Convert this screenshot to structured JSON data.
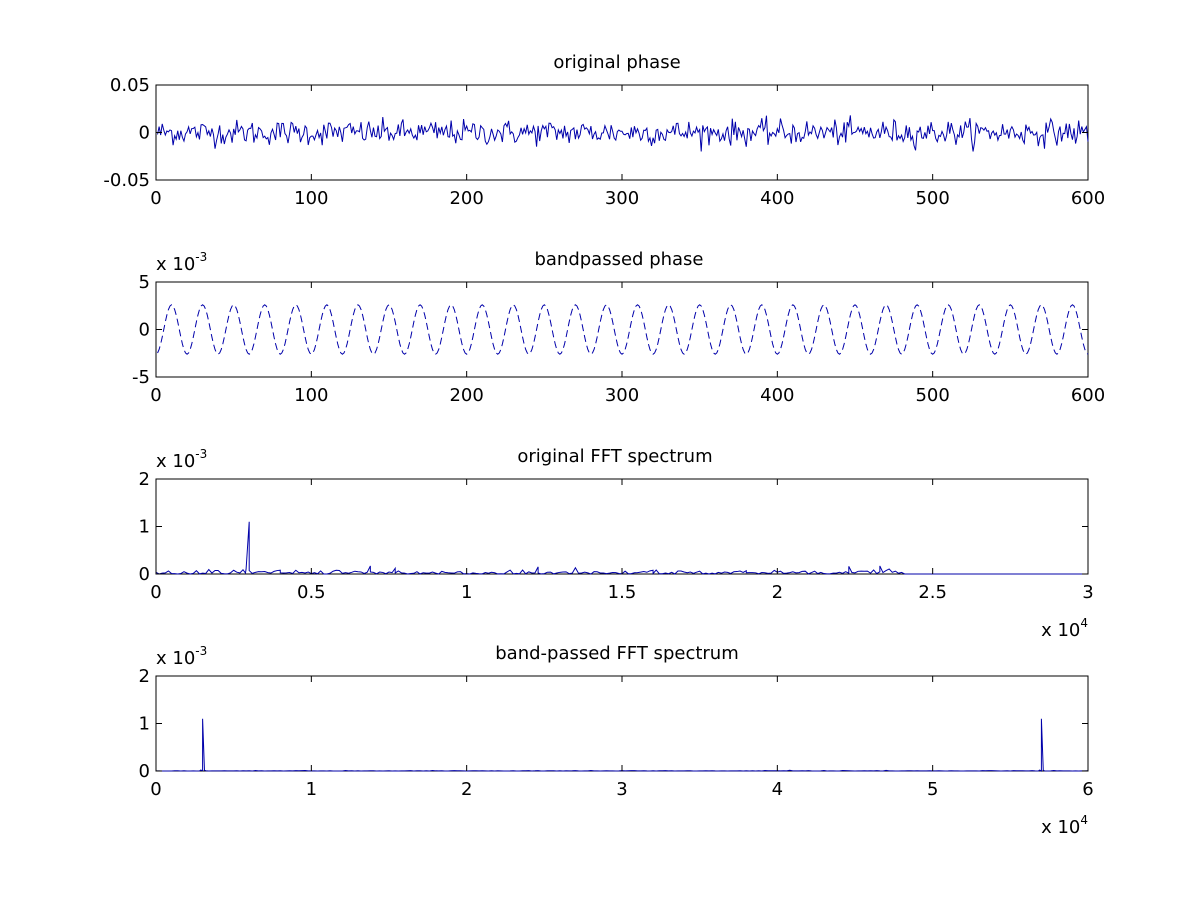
{
  "figure": {
    "background": "#ffffff",
    "line_color": "#0000aa",
    "axis_color": "#000000"
  },
  "chart_data": [
    {
      "type": "line",
      "title": "original phase",
      "xlabel": "",
      "ylabel": "",
      "xlim": [
        0,
        600
      ],
      "ylim": [
        -0.05,
        0.05
      ],
      "xticks": [
        0,
        100,
        200,
        300,
        400,
        500,
        600
      ],
      "xtick_labels": [
        "0",
        "100",
        "200",
        "300",
        "400",
        "500",
        "600"
      ],
      "yticks": [
        -0.05,
        0,
        0.05
      ],
      "ytick_labels": [
        "-0.05",
        "0",
        "0.05"
      ],
      "y_multiplier": null,
      "x_multiplier": null,
      "line_style": "solid",
      "signal": {
        "kind": "noise",
        "x_range": [
          1,
          600
        ],
        "count": 600,
        "amplitude_std": 0.0065,
        "clip": 0.02
      },
      "series": [
        {}
      ]
    },
    {
      "type": "line",
      "title": "bandpassed phase",
      "xlabel": "",
      "ylabel": "",
      "xlim": [
        0,
        600
      ],
      "ylim": [
        -5,
        5
      ],
      "xticks": [
        0,
        100,
        200,
        300,
        400,
        500,
        600
      ],
      "xtick_labels": [
        "0",
        "100",
        "200",
        "300",
        "400",
        "500",
        "600"
      ],
      "yticks": [
        -5,
        0,
        5
      ],
      "ytick_labels": [
        "-5",
        "0",
        "5"
      ],
      "y_multiplier": {
        "base": "x 10",
        "exponent": "-3"
      },
      "x_multiplier": null,
      "line_style": "dashed",
      "signal": {
        "kind": "sine",
        "x_range": [
          1,
          600
        ],
        "count": 600,
        "amplitude": 2.6,
        "period": 20,
        "phase_x": 5
      },
      "series": [
        {}
      ]
    },
    {
      "type": "line",
      "title": "original FFT spectrum",
      "xlabel": "",
      "ylabel": "",
      "xlim": [
        0,
        3
      ],
      "ylim": [
        0,
        2
      ],
      "xticks": [
        0,
        0.5,
        1,
        1.5,
        2,
        2.5,
        3
      ],
      "xtick_labels": [
        "0",
        "0.5",
        "1",
        "1.5",
        "2",
        "2.5",
        "3"
      ],
      "yticks": [
        0,
        1,
        2
      ],
      "ytick_labels": [
        "0",
        "1",
        "2"
      ],
      "y_multiplier": {
        "base": "x 10",
        "exponent": "-3"
      },
      "x_multiplier": {
        "base": "x 10",
        "exponent": "4"
      },
      "line_style": "solid",
      "signal": {
        "kind": "spectrum",
        "x_range": [
          0,
          3
        ],
        "noise_end": 2.4,
        "noise_step": 0.01,
        "noise_level": 0.04,
        "noise_spikes": [
          [
            0.69,
            0.17
          ],
          [
            0.77,
            0.12
          ],
          [
            1.23,
            0.15
          ],
          [
            1.6,
            0.08
          ],
          [
            2.23,
            0.16
          ],
          [
            2.33,
            0.17
          ],
          [
            0.4,
            0.08
          ],
          [
            1.9,
            0.07
          ]
        ],
        "peaks": [
          [
            0.3,
            1.1
          ]
        ]
      },
      "series": [
        {}
      ]
    },
    {
      "type": "line",
      "title": "band-passed FFT spectrum",
      "xlabel": "",
      "ylabel": "",
      "xlim": [
        0,
        6
      ],
      "ylim": [
        0,
        2
      ],
      "xticks": [
        0,
        1,
        2,
        3,
        4,
        5,
        6
      ],
      "xtick_labels": [
        "0",
        "1",
        "2",
        "3",
        "4",
        "5",
        "6"
      ],
      "yticks": [
        0,
        1,
        2
      ],
      "ytick_labels": [
        "0",
        "1",
        "2"
      ],
      "y_multiplier": {
        "base": "x 10",
        "exponent": "-3"
      },
      "x_multiplier": {
        "base": "x 10",
        "exponent": "4"
      },
      "line_style": "solid",
      "signal": {
        "kind": "spectrum",
        "x_range": [
          0,
          6
        ],
        "noise_end": 6,
        "noise_step": 0.02,
        "noise_level": 0.004,
        "noise_spikes": [],
        "peaks": [
          [
            0.3,
            1.1
          ],
          [
            5.7,
            1.1
          ]
        ]
      },
      "series": [
        {}
      ]
    }
  ]
}
